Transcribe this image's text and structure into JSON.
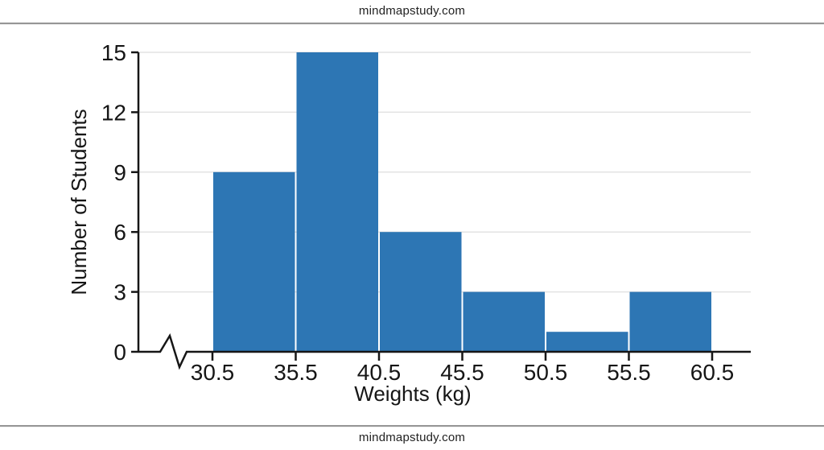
{
  "header": {
    "watermark": "mindmapstudy.com"
  },
  "footer": {
    "watermark": "mindmapstudy.com"
  },
  "colors": {
    "bar_fill": "#2d76b4",
    "grid_line": "#e3e3e3",
    "axis_line": "#161616",
    "text": "#161616",
    "rule_line": "#969696"
  },
  "chart_data": {
    "type": "bar",
    "chart_kind": "histogram",
    "title": "",
    "xlabel": "Weights (kg)",
    "ylabel": "Number of Students",
    "bin_edges": [
      30.5,
      35.5,
      40.5,
      45.5,
      50.5,
      55.5,
      60.5
    ],
    "x_tick_labels": [
      "30.5",
      "35.5",
      "40.5",
      "45.5",
      "50.5",
      "55.5",
      "60.5"
    ],
    "values": [
      9,
      15,
      6,
      3,
      1,
      3
    ],
    "y_ticks": [
      0,
      3,
      6,
      9,
      12,
      15
    ],
    "y_tick_labels": [
      "0",
      "3",
      "6",
      "9",
      "12",
      "15"
    ],
    "ylim": [
      0,
      15
    ],
    "grid": "horizontal-light",
    "legend": "none",
    "axis_break_on_x": true
  }
}
